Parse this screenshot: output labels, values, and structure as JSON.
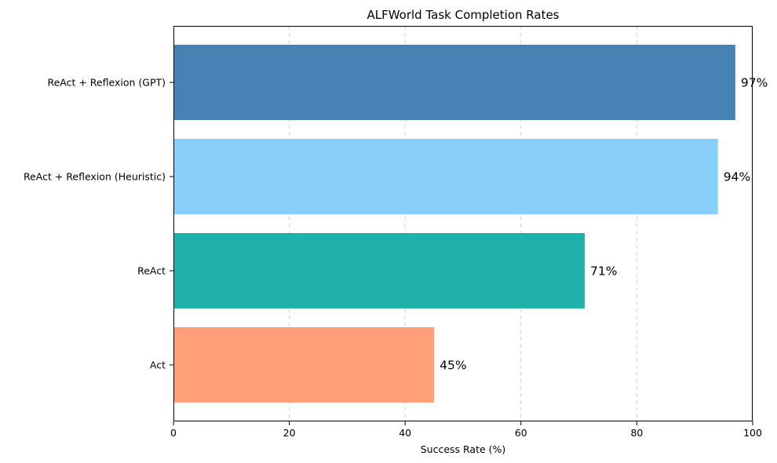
{
  "chart_data": {
    "type": "bar",
    "orientation": "horizontal",
    "title": "ALFWorld Task Completion Rates",
    "xlabel": "Success Rate (%)",
    "ylabel": "",
    "xlim": [
      0,
      100
    ],
    "xticks": [
      0,
      20,
      40,
      60,
      80,
      100
    ],
    "grid": "x, dashed",
    "categories": [
      "Act",
      "ReAct",
      "ReAct + Reflexion (Heuristic)",
      "ReAct + Reflexion (GPT)"
    ],
    "values": [
      45,
      71,
      94,
      97
    ],
    "data_labels": [
      "45%",
      "71%",
      "94%",
      "97%"
    ],
    "colors": [
      "#FFA07A",
      "#20B2AA",
      "#87CEFA",
      "#4682B4"
    ]
  }
}
